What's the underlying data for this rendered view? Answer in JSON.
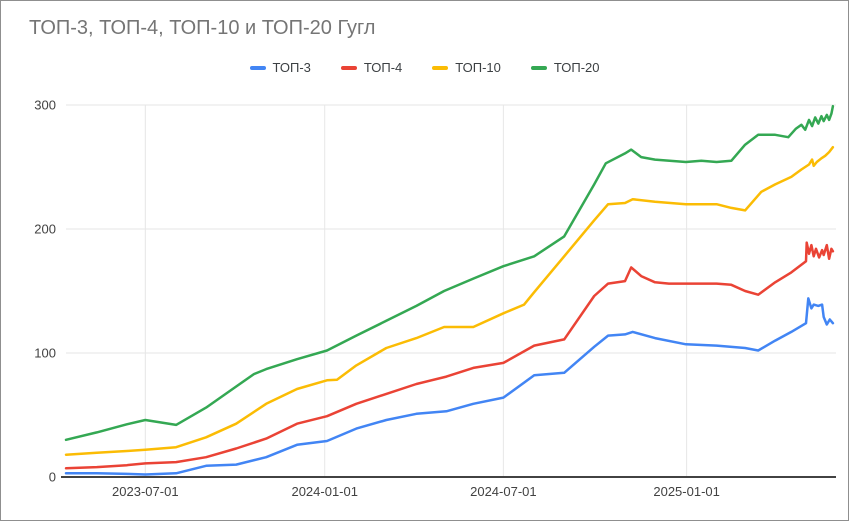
{
  "styles": {
    "frame_border": "#8f8f8f",
    "background": "#ffffff",
    "title_color": "#757575",
    "tick_label_color": "#424242",
    "legend_label_color": "#3c4043",
    "grid_color": "#e6e6e6",
    "axis_baseline_color": "#424242"
  },
  "chart_data": {
    "type": "line",
    "title": "ТОП-3, ТОП-4, ТОП-10 и ТОП-20 Гугл",
    "xlabel": "",
    "ylabel": "",
    "legend_position": "top",
    "grid": true,
    "ylim": [
      0,
      300
    ],
    "y_ticks": [
      0,
      100,
      200,
      300
    ],
    "x_tick_labels": [
      "2023-07-01",
      "2024-01-01",
      "2024-07-01",
      "2025-01-01"
    ],
    "x_tick_positions_pct": [
      10.3,
      33.6,
      56.8,
      80.6
    ],
    "x_span_estimate": [
      "2023-04",
      "2025-06"
    ],
    "series": [
      {
        "name": "ТОП-3",
        "color": "#4285f4",
        "points": [
          [
            0,
            3
          ],
          [
            4,
            3
          ],
          [
            7.9,
            2.5
          ],
          [
            10.3,
            2
          ],
          [
            14.3,
            3
          ],
          [
            18.2,
            9
          ],
          [
            22.1,
            10
          ],
          [
            26,
            16
          ],
          [
            30,
            26
          ],
          [
            33.9,
            29
          ],
          [
            37.7,
            39
          ],
          [
            41.6,
            46
          ],
          [
            45.5,
            51
          ],
          [
            49.4,
            53
          ],
          [
            52.9,
            59
          ],
          [
            56.8,
            64
          ],
          [
            60.8,
            82
          ],
          [
            64.7,
            84
          ],
          [
            68.6,
            105
          ],
          [
            70.4,
            114
          ],
          [
            72.6,
            115
          ],
          [
            73.6,
            117
          ],
          [
            76.5,
            112
          ],
          [
            80.5,
            107
          ],
          [
            84.5,
            106
          ],
          [
            88.2,
            104
          ],
          [
            89.9,
            102
          ],
          [
            92.1,
            110
          ],
          [
            94.2,
            117
          ],
          [
            96.1,
            124
          ],
          [
            96.4,
            144
          ],
          [
            96.8,
            136
          ],
          [
            97.1,
            139
          ],
          [
            97.7,
            138
          ],
          [
            98.2,
            139
          ],
          [
            98.4,
            129
          ],
          [
            98.8,
            123
          ],
          [
            99.2,
            127
          ],
          [
            99.6,
            124
          ]
        ]
      },
      {
        "name": "ТОП-4",
        "color": "#ea4335",
        "points": [
          [
            0,
            7
          ],
          [
            4,
            8
          ],
          [
            7.9,
            9.5
          ],
          [
            10.3,
            11
          ],
          [
            14.3,
            12
          ],
          [
            18.2,
            16
          ],
          [
            22.1,
            23
          ],
          [
            26,
            31
          ],
          [
            30,
            43
          ],
          [
            33.9,
            49
          ],
          [
            37.7,
            59
          ],
          [
            41.6,
            67
          ],
          [
            45.5,
            75
          ],
          [
            49.4,
            81
          ],
          [
            52.9,
            88
          ],
          [
            56.8,
            92
          ],
          [
            60.8,
            106
          ],
          [
            64.7,
            111
          ],
          [
            68.6,
            146
          ],
          [
            70.4,
            156
          ],
          [
            72.6,
            158
          ],
          [
            73.4,
            169
          ],
          [
            74.7,
            162
          ],
          [
            76.5,
            157
          ],
          [
            78.3,
            156
          ],
          [
            80.5,
            156
          ],
          [
            84.5,
            156
          ],
          [
            86.4,
            155
          ],
          [
            88.2,
            150
          ],
          [
            89.9,
            147
          ],
          [
            92.1,
            157
          ],
          [
            94.2,
            165
          ],
          [
            96.1,
            174
          ],
          [
            96.2,
            189
          ],
          [
            96.5,
            180
          ],
          [
            96.8,
            187
          ],
          [
            97.1,
            178
          ],
          [
            97.4,
            184
          ],
          [
            97.8,
            177
          ],
          [
            98.2,
            183
          ],
          [
            98.4,
            179
          ],
          [
            98.8,
            187
          ],
          [
            99.1,
            176
          ],
          [
            99.4,
            184
          ],
          [
            99.6,
            182
          ]
        ]
      },
      {
        "name": "ТОП-10",
        "color": "#fbbc04",
        "points": [
          [
            0,
            18
          ],
          [
            4,
            19.5
          ],
          [
            7.9,
            21
          ],
          [
            10.3,
            22
          ],
          [
            14.3,
            24
          ],
          [
            18.2,
            32
          ],
          [
            22.1,
            43
          ],
          [
            26,
            59
          ],
          [
            30,
            71
          ],
          [
            33.9,
            78
          ],
          [
            35.2,
            78.5
          ],
          [
            37.7,
            90
          ],
          [
            41.6,
            104
          ],
          [
            45.5,
            112
          ],
          [
            49.1,
            121
          ],
          [
            52.9,
            121
          ],
          [
            56.8,
            132
          ],
          [
            59.5,
            139
          ],
          [
            60.8,
            149
          ],
          [
            64.7,
            178
          ],
          [
            68.6,
            207
          ],
          [
            70.4,
            220
          ],
          [
            72.6,
            221
          ],
          [
            73.6,
            224
          ],
          [
            76.5,
            222
          ],
          [
            80.5,
            220
          ],
          [
            84.5,
            220
          ],
          [
            86.4,
            217
          ],
          [
            88.2,
            215
          ],
          [
            90.3,
            230
          ],
          [
            92.1,
            236
          ],
          [
            94.2,
            242
          ],
          [
            95.5,
            248
          ],
          [
            96.5,
            252
          ],
          [
            96.9,
            256
          ],
          [
            97.1,
            251
          ],
          [
            97.5,
            254
          ],
          [
            98.1,
            257
          ],
          [
            98.6,
            259
          ],
          [
            99.1,
            262
          ],
          [
            99.6,
            266
          ]
        ]
      },
      {
        "name": "ТОП-20",
        "color": "#34a853",
        "points": [
          [
            0,
            30
          ],
          [
            4,
            36
          ],
          [
            7.9,
            42.5
          ],
          [
            10.3,
            46
          ],
          [
            14.3,
            42
          ],
          [
            18.2,
            56
          ],
          [
            22.1,
            73
          ],
          [
            24.4,
            83
          ],
          [
            26,
            87
          ],
          [
            30,
            95
          ],
          [
            33.9,
            102
          ],
          [
            37.7,
            114
          ],
          [
            41.6,
            126
          ],
          [
            45.5,
            138
          ],
          [
            49.1,
            150
          ],
          [
            52.9,
            160
          ],
          [
            56.8,
            170
          ],
          [
            60.8,
            178
          ],
          [
            64.7,
            194
          ],
          [
            68.6,
            236
          ],
          [
            70.1,
            253
          ],
          [
            72.6,
            261
          ],
          [
            73.4,
            264
          ],
          [
            74.7,
            258
          ],
          [
            76.5,
            256
          ],
          [
            80.5,
            254
          ],
          [
            82.5,
            255
          ],
          [
            84.5,
            254
          ],
          [
            86.4,
            255
          ],
          [
            88.2,
            268
          ],
          [
            89.9,
            276
          ],
          [
            92.1,
            276
          ],
          [
            93.8,
            274
          ],
          [
            94.8,
            281
          ],
          [
            95.5,
            284
          ],
          [
            96,
            280
          ],
          [
            96.5,
            288
          ],
          [
            96.9,
            283
          ],
          [
            97.3,
            290
          ],
          [
            97.7,
            285
          ],
          [
            98.1,
            291
          ],
          [
            98.4,
            287
          ],
          [
            98.8,
            292
          ],
          [
            99.1,
            288
          ],
          [
            99.4,
            293
          ],
          [
            99.6,
            299
          ]
        ]
      }
    ]
  }
}
